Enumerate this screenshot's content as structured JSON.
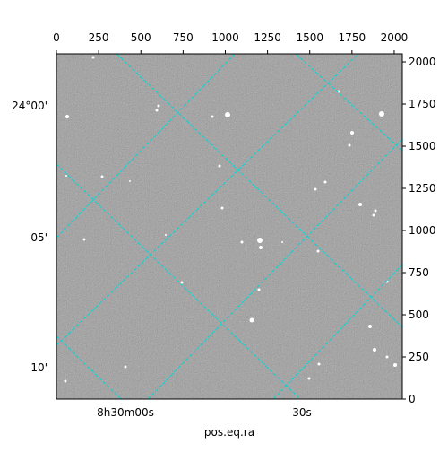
{
  "chart_data": {
    "type": "image",
    "xlabel": "pos.eq.ra",
    "xlim": [
      0,
      2048
    ],
    "ylim": [
      0,
      2048
    ],
    "xticks": [
      0,
      250,
      500,
      750,
      1000,
      1250,
      1500,
      1750,
      2000
    ],
    "yticks": [
      0,
      250,
      500,
      750,
      1000,
      1250,
      1500,
      1750,
      2000
    ],
    "ra_ticks": [
      "8h30m00s",
      "30s"
    ],
    "dec_ticks": [
      "24°00'",
      "05'",
      "10'"
    ]
  }
}
